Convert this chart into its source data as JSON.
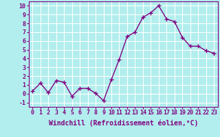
{
  "x": [
    0,
    1,
    2,
    3,
    4,
    5,
    6,
    7,
    8,
    9,
    10,
    11,
    12,
    13,
    14,
    15,
    16,
    17,
    18,
    19,
    20,
    21,
    22,
    23
  ],
  "y": [
    0.3,
    1.2,
    0.1,
    1.5,
    1.3,
    -0.3,
    0.6,
    0.6,
    0.05,
    -0.8,
    1.6,
    3.9,
    6.5,
    7.0,
    8.7,
    9.2,
    10.0,
    8.5,
    8.2,
    6.4,
    5.4,
    5.4,
    4.9,
    4.6
  ],
  "color": "#800080",
  "marker": "+",
  "linewidth": 1.0,
  "markersize": 4,
  "markeredgewidth": 1.0,
  "xlabel": "Windchill (Refroidissement éolien,°C)",
  "xlabel_fontsize": 7,
  "bg_color": "#b2eeee",
  "grid_color": "#ffffff",
  "ylim": [
    -1.5,
    10.5
  ],
  "xlim": [
    -0.5,
    23.5
  ],
  "yticks": [
    -1,
    0,
    1,
    2,
    3,
    4,
    5,
    6,
    7,
    8,
    9,
    10
  ],
  "xticks": [
    0,
    1,
    2,
    3,
    4,
    5,
    6,
    7,
    8,
    9,
    10,
    11,
    12,
    13,
    14,
    15,
    16,
    17,
    18,
    19,
    20,
    21,
    22,
    23
  ],
  "tick_fontsize": 6,
  "tick_color": "#800080",
  "spine_color": "#800080",
  "label_color": "#800080",
  "xlabel_color": "#800080"
}
